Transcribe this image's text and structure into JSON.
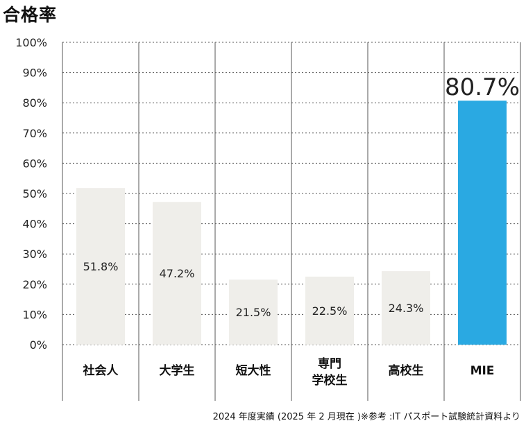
{
  "title": "合格率",
  "footnote": "2024 年度実績 (2025 年 2 月現在 )※参考 :IT パスポート試験統計資料より",
  "colors": {
    "bar": "#efeeea",
    "highlight": "#2aa9e2",
    "highlight_label": "#1b7fc2",
    "grid": "#555555"
  },
  "chart_data": {
    "type": "bar",
    "title": "合格率",
    "xlabel": "",
    "ylabel": "",
    "ylim": [
      0,
      100
    ],
    "y_ticks": [
      "0%",
      "10%",
      "20%",
      "30%",
      "40%",
      "50%",
      "60%",
      "70%",
      "80%",
      "90%",
      "100%"
    ],
    "grid": true,
    "categories": [
      [
        "社会人"
      ],
      [
        "大学生"
      ],
      [
        "短大性"
      ],
      [
        "専門",
        "学校生"
      ],
      [
        "高校生"
      ],
      [
        "MIE"
      ]
    ],
    "values": [
      51.8,
      47.2,
      21.5,
      22.5,
      24.3,
      80.7
    ],
    "data_labels": [
      "51.8%",
      "47.2%",
      "21.5%",
      "22.5%",
      "24.3%",
      "80.7%"
    ],
    "highlight_index": 5
  }
}
